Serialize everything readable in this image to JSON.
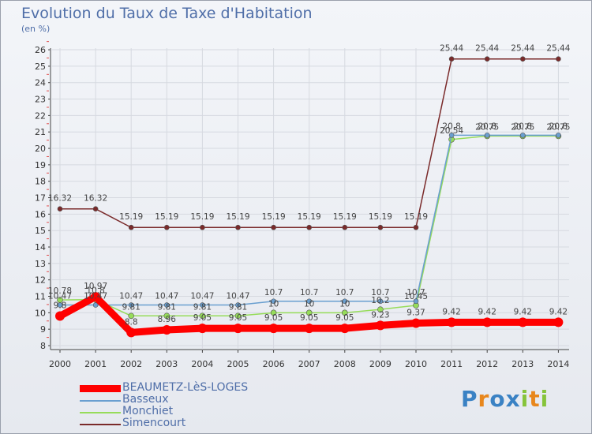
{
  "header": {
    "title": "Evolution du Taux de Taxe d'Habitation",
    "unit": "(en %)"
  },
  "colors": {
    "BEAUMETZ-LèS-LOGES": "#ff0000",
    "Basseux": "#6a9fd0",
    "Monchiet": "#96dc5a",
    "Simencourt": "#7a2a2a"
  },
  "chart_data": {
    "type": "line",
    "title": "Evolution du Taux de Taxe d'Habitation",
    "ylabel": "(en %)",
    "xlabel": "",
    "categories": [
      "2000",
      "2001",
      "2002",
      "2003",
      "2004",
      "2005",
      "2006",
      "2007",
      "2008",
      "2009",
      "2010",
      "2011",
      "2012",
      "2013",
      "2014"
    ],
    "yticks": [
      8,
      9,
      10,
      11,
      12,
      13,
      14,
      15,
      16,
      17,
      18,
      19,
      20,
      21,
      22,
      23,
      24,
      25,
      26
    ],
    "ylim": [
      8,
      26
    ],
    "series": [
      {
        "name": "BEAUMETZ-LèS-LOGES",
        "values": [
          9.8,
          10.97,
          8.8,
          8.96,
          9.05,
          9.05,
          9.05,
          9.05,
          9.05,
          9.23,
          9.37,
          9.42,
          9.42,
          9.42,
          9.42
        ],
        "labels": [
          "9.8",
          "10.97",
          "8.8",
          "8.96",
          "9.05",
          "9.05",
          "9.05",
          "9.05",
          "9.05",
          "9.23",
          "9.37",
          "9.42",
          "9.42",
          "9.42",
          "9.42"
        ]
      },
      {
        "name": "Basseux",
        "values": [
          10.47,
          10.47,
          10.47,
          10.47,
          10.47,
          10.47,
          10.7,
          10.7,
          10.7,
          10.7,
          10.7,
          20.8,
          20.8,
          20.8,
          20.8
        ],
        "labels": [
          "10.47",
          "10.47",
          "10.47",
          "10.47",
          "10.47",
          "10.47",
          "10.7",
          "10.7",
          "10.7",
          "10.7",
          "10.7",
          "20.8",
          "20.8",
          "20.8",
          "20.8"
        ]
      },
      {
        "name": "Monchiet",
        "values": [
          10.78,
          10.8,
          9.81,
          9.81,
          9.81,
          9.81,
          10.0,
          10.0,
          10.0,
          10.2,
          10.45,
          20.54,
          20.75,
          20.75,
          20.75
        ],
        "labels": [
          "10.78",
          "10.8",
          "9.81",
          "9.81",
          "9.81",
          "9.81",
          "10",
          "10",
          "10",
          "10.2",
          "10.45",
          "20.54",
          "20.75",
          "20.75",
          "20.75"
        ]
      },
      {
        "name": "Simencourt",
        "values": [
          16.32,
          16.32,
          15.19,
          15.19,
          15.19,
          15.19,
          15.19,
          15.19,
          15.19,
          15.19,
          15.19,
          25.44,
          25.44,
          25.44,
          25.44
        ],
        "labels": [
          "16.32",
          "16.32",
          "15.19",
          "15.19",
          "15.19",
          "15.19",
          "15.19",
          "15.19",
          "15.19",
          "15.19",
          "15.19",
          "25.44",
          "25.44",
          "25.44",
          "25.44"
        ]
      }
    ]
  },
  "legend": {
    "items": [
      "BEAUMETZ-LèS-LOGES",
      "Basseux",
      "Monchiet",
      "Simencourt"
    ]
  },
  "logo": {
    "letters": [
      "P",
      "r",
      "o",
      "x",
      "i",
      "t",
      "i"
    ],
    "colors": [
      "#3a82c4",
      "#e8871c",
      "#3a82c4",
      "#3a82c4",
      "#86c43a",
      "#e8871c",
      "#86c43a"
    ]
  }
}
